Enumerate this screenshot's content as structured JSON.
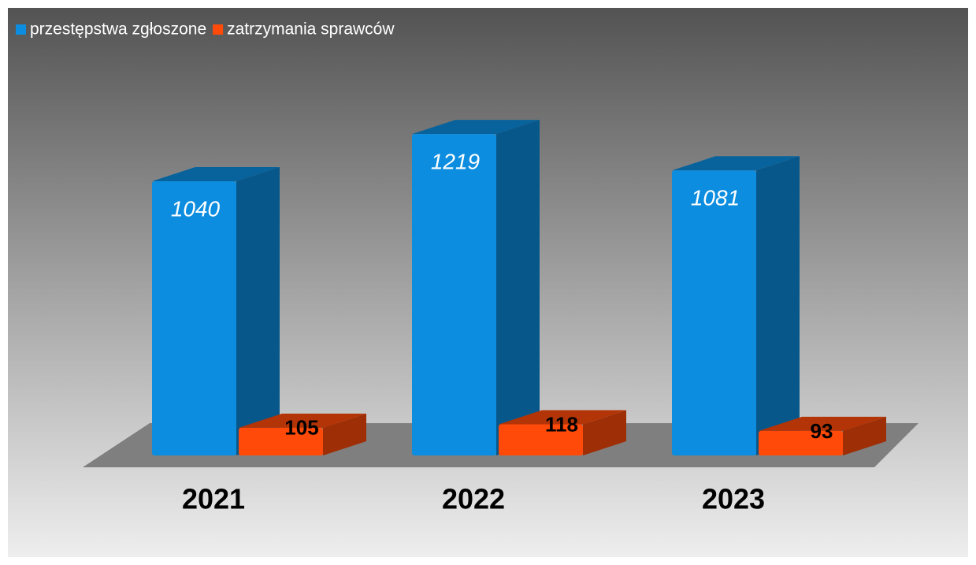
{
  "chart_data": {
    "type": "bar3d",
    "categories": [
      "2021",
      "2022",
      "2023"
    ],
    "series": [
      {
        "name": "przestępstwa zgłoszone",
        "color": "#0c8ddf",
        "values": [
          1040,
          1219,
          1081
        ]
      },
      {
        "name": "zatrzymania sprawców",
        "color": "#ff4a0a",
        "values": [
          105,
          118,
          93
        ]
      }
    ],
    "legend": "top-left"
  }
}
